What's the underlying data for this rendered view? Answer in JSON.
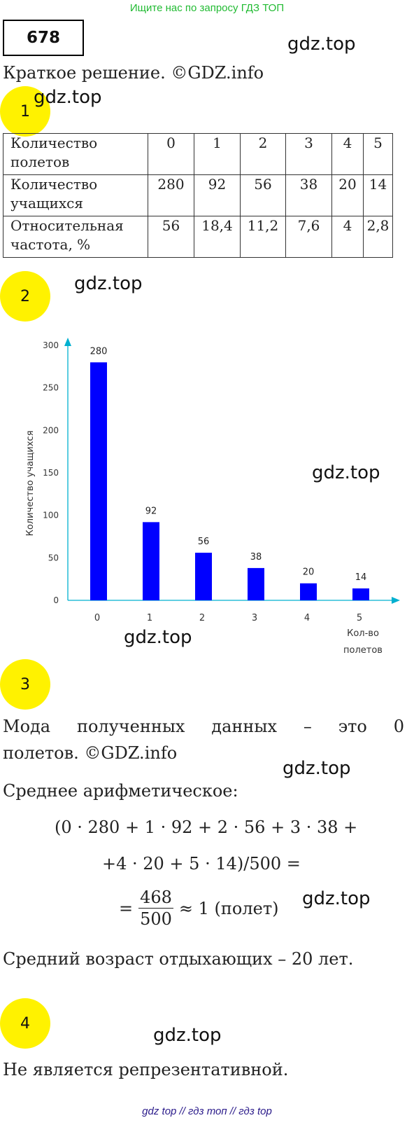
{
  "banner": "Ищите нас по запросу ГДЗ ТОП",
  "exercise_number": "678",
  "watermark": "gdz.top",
  "brief_solution": "Краткое решение. ©GDZ.info",
  "steps": [
    "1",
    "2",
    "3",
    "4"
  ],
  "table": {
    "rows": [
      {
        "label_lines": [
          "Количество",
          "полетов"
        ],
        "cells": [
          "0",
          "1",
          "2",
          "3",
          "4",
          "5"
        ]
      },
      {
        "label_lines": [
          "Количество",
          "учащихся"
        ],
        "cells": [
          "280",
          "92",
          "56",
          "38",
          "20",
          "14"
        ]
      },
      {
        "label_lines": [
          "Относительная",
          "частота, %"
        ],
        "cells": [
          "56",
          "18,4",
          "11,2",
          "7,6",
          "4",
          "2,8"
        ]
      }
    ]
  },
  "chart_data": {
    "type": "bar",
    "categories": [
      "0",
      "1",
      "2",
      "3",
      "4",
      "5"
    ],
    "values": [
      280,
      92,
      56,
      38,
      20,
      14
    ],
    "data_labels": [
      "280",
      "92",
      "56",
      "38",
      "20",
      "14"
    ],
    "ylabel": "Количество учащихся",
    "xlabel_lines": [
      "Кол-во",
      "полетов"
    ],
    "y_ticks": [
      "0",
      "50",
      "100",
      "150",
      "200",
      "250",
      "300"
    ],
    "ylim": [
      0,
      300
    ],
    "grid": false,
    "bar_color": "#0000ff",
    "axis_color": "#00b0d0"
  },
  "step3": {
    "mode_line1": "Мода полученных данных – это 0",
    "mode_line2": "полетов. ©GDZ.info",
    "mean_label": "Среднее арифметическое:",
    "formula_line1": "(0 · 280 + 1 · 92 + 2 · 56 + 3 · 38 +",
    "formula_line2": "+4 · 20 + 5 · 14)/500 =",
    "formula_eq": "=",
    "fraction_num": "468",
    "fraction_den": "500",
    "formula_result": "≈ 1 (полет)",
    "age_line": "Средний возраст отдыхающих – 20 лет."
  },
  "step4": {
    "answer": "Не является репрезентативной."
  },
  "footer": "gdz top  //  гдз топ  //  гдз top"
}
